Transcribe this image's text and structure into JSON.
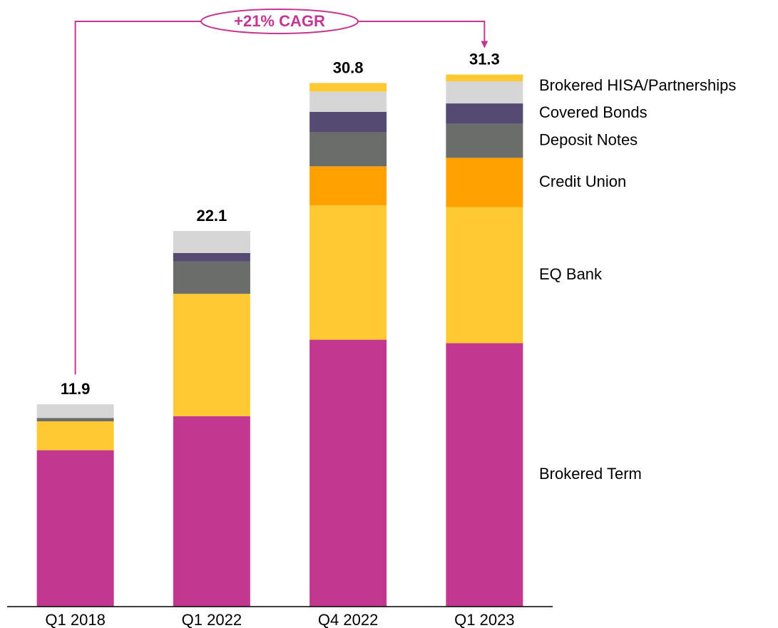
{
  "chart_data": {
    "type": "stacked_bar",
    "annotation": "+21% CAGR",
    "categories": [
      "Q1 2018",
      "Q1 2022",
      "Q4 2022",
      "Q1 2023"
    ],
    "totals": [
      11.9,
      22.1,
      30.8,
      31.3
    ],
    "series": [
      {
        "name": "Brokered Term",
        "color": "#c2378f",
        "values": [
          9.2,
          11.2,
          15.7,
          15.5
        ]
      },
      {
        "name": "EQ Bank",
        "color": "#ffc933",
        "values": [
          1.7,
          7.2,
          7.9,
          8.0
        ]
      },
      {
        "name": "Credit Union",
        "color": "#ffa100",
        "values": [
          0,
          0,
          2.3,
          2.9
        ]
      },
      {
        "name": "Deposit Notes",
        "color": "#6b6d6b",
        "values": [
          0.2,
          1.9,
          2.0,
          2.0
        ]
      },
      {
        "name": "Covered Bonds",
        "color": "#544a72",
        "values": [
          0,
          0.5,
          1.2,
          1.2
        ]
      },
      {
        "name": "Brokered HISA/Partnerships",
        "color": "#d6d6d6",
        "values": [
          0.8,
          1.3,
          1.2,
          1.3
        ]
      },
      {
        "name": null,
        "color": "#ffc933",
        "values": [
          0,
          0,
          0.5,
          0.4
        ]
      }
    ],
    "ylim": [
      0,
      33
    ]
  }
}
